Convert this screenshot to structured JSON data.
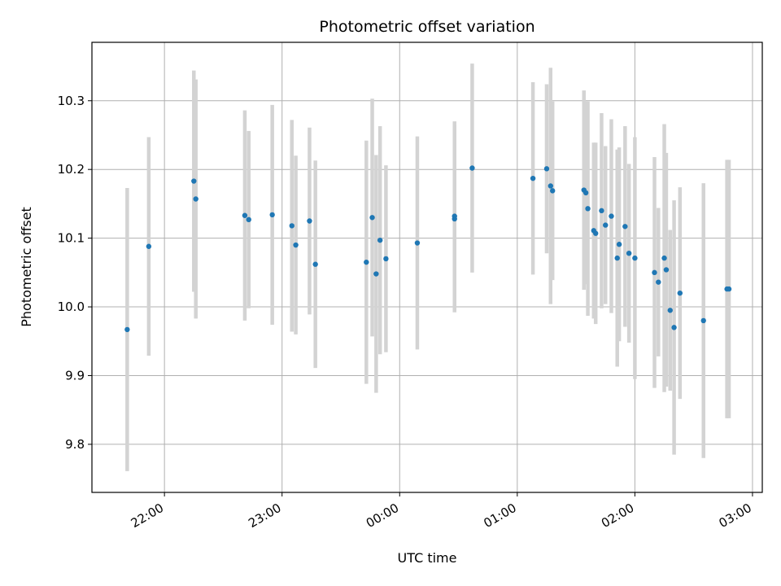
{
  "chart_data": {
    "type": "scatter",
    "title": "Photometric offset variation",
    "xlabel": "UTC time",
    "ylabel": "Photometric offset",
    "x_ticks": [
      "22:00",
      "23:00",
      "00:00",
      "01:00",
      "02:00",
      "03:00"
    ],
    "y_ticks": [
      "9.8",
      "9.9",
      "10.0",
      "10.1",
      "10.2",
      "10.3"
    ],
    "xlim": [
      "21:23",
      "03:05"
    ],
    "ylim": [
      9.73,
      10.385
    ],
    "grid": true,
    "colors": {
      "point": "#1f77b4",
      "errorbar": "#d3d3d3",
      "grid": "#b0b0b0"
    },
    "series": [
      {
        "x": [
          "21:41",
          "21:52",
          "22:15",
          "22:16",
          "22:41",
          "22:43",
          "22:55",
          "23:05",
          "23:07",
          "23:14",
          "23:17",
          "23:43",
          "23:46",
          "23:48",
          "23:50",
          "23:53",
          "00:09",
          "00:28",
          "00:28",
          "00:37",
          "01:08",
          "01:15",
          "01:17",
          "01:18",
          "01:34",
          "01:35",
          "01:36",
          "01:39",
          "01:40",
          "01:43",
          "01:45",
          "01:48",
          "01:51",
          "01:52",
          "01:55",
          "01:57",
          "02:00",
          "02:10",
          "02:12",
          "02:15",
          "02:16",
          "02:18",
          "02:20",
          "02:23",
          "02:35",
          "02:47",
          "02:48"
        ],
        "y": [
          9.967,
          10.088,
          10.183,
          10.157,
          10.133,
          10.127,
          10.134,
          10.118,
          10.09,
          10.125,
          10.062,
          10.065,
          10.13,
          10.048,
          10.097,
          10.07,
          10.093,
          10.128,
          10.132,
          10.202,
          10.187,
          10.201,
          10.176,
          10.169,
          10.17,
          10.166,
          10.143,
          10.111,
          10.107,
          10.14,
          10.119,
          10.132,
          10.071,
          10.091,
          10.117,
          10.078,
          10.071,
          10.05,
          10.036,
          10.071,
          10.054,
          9.995,
          9.97,
          10.02,
          9.98,
          10.026,
          10.026
        ],
        "yerr": [
          0.206,
          0.159,
          0.161,
          0.174,
          0.153,
          0.129,
          0.16,
          0.154,
          0.13,
          0.136,
          0.151,
          0.177,
          0.173,
          0.173,
          0.166,
          0.136,
          0.155,
          0.136,
          0.138,
          0.152,
          0.14,
          0.123,
          0.172,
          0.13,
          0.145,
          0.133,
          0.156,
          0.128,
          0.132,
          0.142,
          0.115,
          0.141,
          0.158,
          0.141,
          0.146,
          0.13,
          0.176,
          0.168,
          0.108,
          0.195,
          0.17,
          0.117,
          0.185,
          0.154,
          0.2,
          0.188,
          0.188
        ]
      }
    ]
  }
}
